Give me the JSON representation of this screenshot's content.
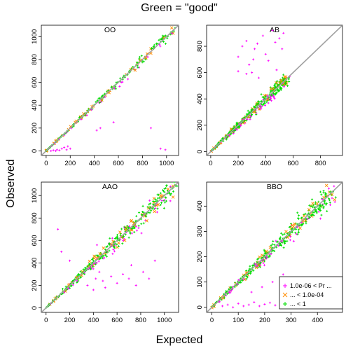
{
  "figure": {
    "title": "Green = \"good\"",
    "xlabel": "Expected",
    "ylabel": "Observed"
  },
  "legend": {
    "placement": "bottom-right of BBO panel",
    "entries": [
      {
        "label": "1.0e-06 < Pr ...",
        "color": "#ff00ff",
        "marker": "plus"
      },
      {
        "label": "... < 1.0e-04",
        "color": "#ff8c00",
        "marker": "cross"
      },
      {
        "label": "... < 1",
        "color": "#00dd00",
        "marker": "plus"
      }
    ]
  },
  "colors": {
    "magenta": "#ff00ff",
    "orange": "#ff8c00",
    "green": "#00dd00",
    "identity_line": "#a0a0a0"
  },
  "chart_data": [
    {
      "type": "scatter",
      "title": "OO",
      "xlim": [
        -40,
        1100
      ],
      "ylim": [
        -40,
        1100
      ],
      "xticks": [
        0,
        200,
        400,
        600,
        800,
        1000
      ],
      "yticks": [
        0,
        200,
        400,
        600,
        800,
        1000
      ],
      "identity_line": true,
      "magenta_points": [
        [
          40,
          0
        ],
        [
          60,
          5
        ],
        [
          80,
          0
        ],
        [
          90,
          10
        ],
        [
          110,
          5
        ],
        [
          130,
          20
        ],
        [
          150,
          30
        ],
        [
          170,
          10
        ],
        [
          180,
          40
        ],
        [
          200,
          20
        ],
        [
          420,
          180
        ],
        [
          450,
          200
        ],
        [
          560,
          250
        ],
        [
          870,
          200
        ],
        [
          950,
          20
        ],
        [
          990,
          10
        ]
      ]
    },
    {
      "type": "scatter",
      "title": "AB",
      "xlim": [
        -30,
        960
      ],
      "ylim": [
        -30,
        960
      ],
      "xticks": [
        0,
        200,
        400,
        600,
        800
      ],
      "yticks": [
        0,
        200,
        400,
        600,
        800
      ],
      "identity_line": true,
      "magenta_points": [
        [
          200,
          720
        ],
        [
          230,
          800
        ],
        [
          260,
          840
        ],
        [
          280,
          660
        ],
        [
          300,
          600
        ],
        [
          320,
          780
        ],
        [
          350,
          560
        ],
        [
          380,
          880
        ],
        [
          400,
          740
        ],
        [
          420,
          690
        ],
        [
          450,
          920
        ],
        [
          470,
          830
        ],
        [
          480,
          620
        ],
        [
          500,
          860
        ],
        [
          520,
          780
        ],
        [
          530,
          900
        ],
        [
          200,
          610
        ],
        [
          260,
          590
        ],
        [
          310,
          700
        ],
        [
          340,
          820
        ]
      ]
    },
    {
      "type": "scatter",
      "title": "AAO",
      "xlim": [
        -40,
        1120
      ],
      "ylim": [
        -40,
        1120
      ],
      "xticks": [
        0,
        200,
        400,
        600,
        800,
        1000
      ],
      "yticks": [
        0,
        200,
        400,
        600,
        800,
        1000
      ],
      "identity_line": true,
      "magenta_points": [
        [
          100,
          700
        ],
        [
          130,
          500
        ],
        [
          200,
          420
        ],
        [
          350,
          200
        ],
        [
          400,
          160
        ],
        [
          420,
          260
        ],
        [
          450,
          320
        ],
        [
          480,
          240
        ],
        [
          500,
          180
        ],
        [
          550,
          280
        ],
        [
          600,
          220
        ],
        [
          650,
          300
        ],
        [
          700,
          260
        ],
        [
          720,
          380
        ],
        [
          760,
          200
        ],
        [
          820,
          320
        ],
        [
          870,
          260
        ],
        [
          920,
          420
        ],
        [
          430,
          560
        ],
        [
          560,
          620
        ]
      ]
    },
    {
      "type": "scatter",
      "title": "BBO",
      "xlim": [
        -20,
        495
      ],
      "ylim": [
        -20,
        495
      ],
      "xticks": [
        0,
        100,
        200,
        300,
        400
      ],
      "yticks": [
        0,
        100,
        200,
        300,
        400
      ],
      "identity_line": true,
      "magenta_points": [
        [
          40,
          5
        ],
        [
          60,
          10
        ],
        [
          80,
          0
        ],
        [
          100,
          15
        ],
        [
          120,
          5
        ],
        [
          140,
          10
        ],
        [
          160,
          20
        ],
        [
          180,
          5
        ],
        [
          200,
          12
        ],
        [
          220,
          18
        ],
        [
          240,
          8
        ],
        [
          260,
          25
        ],
        [
          280,
          10
        ],
        [
          300,
          15
        ],
        [
          320,
          30
        ],
        [
          150,
          60
        ],
        [
          190,
          80
        ],
        [
          230,
          100
        ],
        [
          270,
          130
        ]
      ]
    }
  ]
}
